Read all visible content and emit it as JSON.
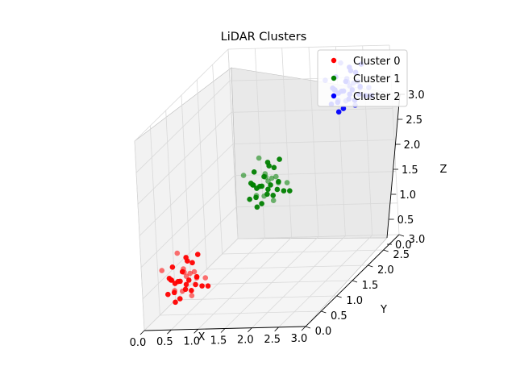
{
  "chart_data": {
    "type": "scatter",
    "projection": "3d",
    "title": "LiDAR Clusters",
    "xlabel": "X",
    "ylabel": "Y",
    "zlabel": "Z",
    "xlim": [
      0,
      3
    ],
    "ylim": [
      0,
      3
    ],
    "zlim": [
      0,
      3
    ],
    "xticks": [
      "0.0",
      "0.5",
      "1.0",
      "1.5",
      "2.0",
      "2.5",
      "3.0"
    ],
    "yticks": [
      "0.0",
      "0.5",
      "1.0",
      "1.5",
      "2.0",
      "2.5",
      "3.0"
    ],
    "zticks": [
      "0.0",
      "0.5",
      "1.0",
      "1.5",
      "2.0",
      "2.5",
      "3.0"
    ],
    "grid": true,
    "legend_position": "top-right",
    "series": [
      {
        "name": "Cluster 0",
        "color": "#ff0000",
        "points": [
          [
            0.45,
            0.55,
            0.7
          ],
          [
            0.3,
            0.4,
            0.6
          ],
          [
            0.6,
            0.7,
            0.5
          ],
          [
            0.2,
            0.3,
            0.8
          ],
          [
            0.5,
            0.5,
            0.4
          ],
          [
            0.7,
            0.6,
            0.9
          ],
          [
            0.35,
            0.65,
            0.3
          ],
          [
            0.55,
            0.35,
            0.75
          ],
          [
            0.4,
            0.45,
            0.55
          ],
          [
            0.65,
            0.55,
            0.65
          ],
          [
            0.25,
            0.6,
            0.45
          ],
          [
            0.8,
            0.7,
            0.35
          ],
          [
            0.45,
            0.25,
            0.5
          ],
          [
            0.6,
            0.4,
            0.95
          ],
          [
            0.3,
            0.5,
            0.2
          ],
          [
            0.75,
            0.45,
            0.6
          ],
          [
            0.5,
            0.75,
            0.7
          ],
          [
            0.2,
            0.45,
            0.35
          ],
          [
            0.55,
            0.6,
            0.25
          ],
          [
            0.4,
            0.3,
            0.85
          ],
          [
            0.7,
            0.35,
            0.45
          ],
          [
            0.35,
            0.55,
            0.95
          ],
          [
            0.6,
            0.65,
            0.4
          ],
          [
            0.45,
            0.4,
            0.3
          ],
          [
            0.85,
            0.55,
            0.55
          ],
          [
            0.3,
            0.35,
            0.65
          ],
          [
            0.5,
            0.6,
            0.8
          ],
          [
            0.65,
            0.3,
            0.7
          ],
          [
            0.25,
            0.5,
            0.55
          ],
          [
            0.55,
            0.45,
            0.5
          ],
          [
            0.4,
            0.65,
            0.6
          ],
          [
            0.75,
            0.6,
            0.4
          ],
          [
            0.35,
            0.4,
            0.4
          ],
          [
            0.6,
            0.5,
            0.65
          ],
          [
            0.45,
            0.7,
            0.45
          ],
          [
            0.5,
            0.35,
            0.6
          ]
        ]
      },
      {
        "name": "Cluster 1",
        "color": "#008000",
        "points": [
          [
            1.45,
            1.55,
            1.7
          ],
          [
            1.3,
            1.4,
            1.6
          ],
          [
            1.6,
            1.7,
            1.5
          ],
          [
            1.2,
            1.3,
            1.8
          ],
          [
            1.5,
            1.5,
            1.4
          ],
          [
            1.7,
            1.6,
            1.9
          ],
          [
            1.35,
            1.65,
            1.3
          ],
          [
            1.55,
            1.35,
            1.75
          ],
          [
            1.4,
            1.45,
            1.55
          ],
          [
            1.65,
            1.55,
            1.65
          ],
          [
            1.25,
            1.6,
            1.45
          ],
          [
            1.8,
            1.7,
            1.35
          ],
          [
            1.45,
            1.25,
            1.5
          ],
          [
            1.6,
            1.4,
            1.95
          ],
          [
            1.3,
            1.5,
            1.2
          ],
          [
            1.75,
            1.45,
            1.6
          ],
          [
            1.5,
            1.75,
            1.7
          ],
          [
            1.2,
            1.45,
            1.35
          ],
          [
            1.55,
            1.6,
            1.25
          ],
          [
            1.4,
            1.3,
            1.85
          ],
          [
            1.7,
            1.35,
            1.45
          ],
          [
            1.35,
            1.55,
            1.95
          ],
          [
            1.6,
            1.65,
            1.4
          ],
          [
            1.45,
            1.4,
            1.3
          ],
          [
            1.85,
            1.55,
            1.55
          ],
          [
            1.3,
            1.35,
            1.65
          ],
          [
            1.5,
            1.6,
            1.8
          ],
          [
            1.65,
            1.3,
            1.7
          ],
          [
            1.25,
            1.5,
            1.55
          ],
          [
            1.55,
            1.45,
            1.5
          ],
          [
            1.4,
            1.65,
            1.6
          ],
          [
            1.75,
            1.6,
            1.4
          ],
          [
            1.35,
            1.4,
            1.4
          ],
          [
            1.6,
            1.5,
            1.65
          ],
          [
            1.45,
            1.7,
            1.45
          ],
          [
            1.5,
            1.35,
            1.6
          ]
        ]
      },
      {
        "name": "Cluster 2",
        "color": "#0000ff",
        "points": [
          [
            2.45,
            2.55,
            2.7
          ],
          [
            2.3,
            2.4,
            2.6
          ],
          [
            2.6,
            2.7,
            2.5
          ],
          [
            2.2,
            2.3,
            2.8
          ],
          [
            2.5,
            2.5,
            2.4
          ],
          [
            2.7,
            2.6,
            2.9
          ],
          [
            2.35,
            2.65,
            2.3
          ],
          [
            2.55,
            2.35,
            2.75
          ],
          [
            2.4,
            2.45,
            2.55
          ],
          [
            2.65,
            2.55,
            2.65
          ],
          [
            2.25,
            2.6,
            2.45
          ],
          [
            2.8,
            2.7,
            2.35
          ],
          [
            2.45,
            2.25,
            2.5
          ],
          [
            2.6,
            2.4,
            2.95
          ],
          [
            2.3,
            2.5,
            2.2
          ],
          [
            2.75,
            2.45,
            2.6
          ],
          [
            2.5,
            2.75,
            2.7
          ],
          [
            2.2,
            2.45,
            2.35
          ],
          [
            2.55,
            2.6,
            2.25
          ],
          [
            2.4,
            2.3,
            2.85
          ],
          [
            2.7,
            2.35,
            2.45
          ],
          [
            2.35,
            2.55,
            2.95
          ],
          [
            2.6,
            2.65,
            2.4
          ],
          [
            2.45,
            2.4,
            2.3
          ],
          [
            2.85,
            2.55,
            2.55
          ],
          [
            2.3,
            2.35,
            2.65
          ],
          [
            2.5,
            2.6,
            2.8
          ],
          [
            2.65,
            2.3,
            2.7
          ],
          [
            2.25,
            2.5,
            2.55
          ],
          [
            2.55,
            2.45,
            2.5
          ],
          [
            2.4,
            2.65,
            2.6
          ],
          [
            2.75,
            2.6,
            2.4
          ],
          [
            2.35,
            2.4,
            2.4
          ],
          [
            2.6,
            2.5,
            2.65
          ],
          [
            2.45,
            2.7,
            2.45
          ],
          [
            2.5,
            2.35,
            2.6
          ]
        ]
      }
    ]
  }
}
